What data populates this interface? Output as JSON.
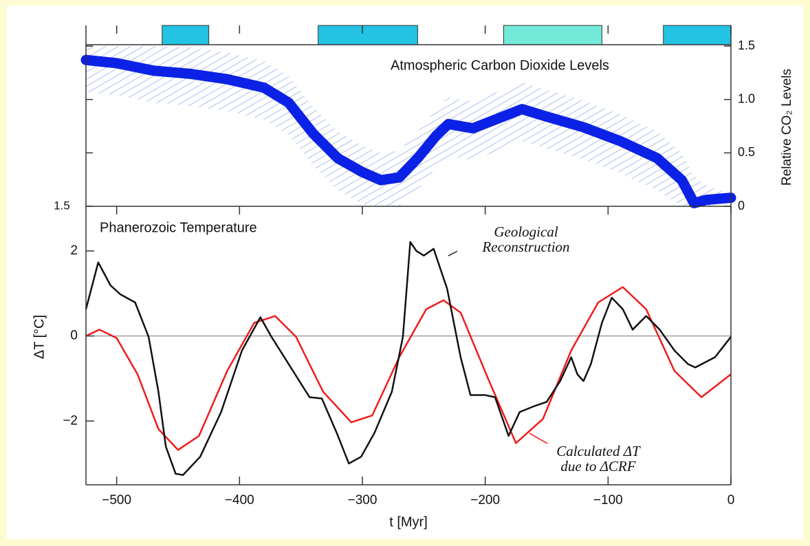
{
  "chart_data": [
    {
      "type": "line",
      "title": "Atmospheric Carbon Dioxide Levels",
      "y_label": "Relative CO₂ Levels",
      "corner_label": "1.5",
      "xlim": [
        -525,
        0
      ],
      "ylim": [
        0,
        1.5
      ],
      "yticks": [
        0,
        0.5,
        {
          "value": 1,
          "label": "1.0"
        },
        1.5
      ],
      "bands": [
        {
          "start": -463,
          "end": -425,
          "color": "#22c3e3"
        },
        {
          "start": -336,
          "end": -255,
          "color": "#22c3e3"
        },
        {
          "start": -185,
          "end": -105,
          "color": "#72ead9"
        },
        {
          "start": -55,
          "end": 0,
          "color": "#22c3e3"
        }
      ],
      "series": [
        {
          "color": "#0b22e6",
          "hatch_color": "#8aa4ea",
          "x": [
            -525,
            -500,
            -470,
            -440,
            -410,
            -380,
            -360,
            -340,
            -320,
            -300,
            -285,
            -270,
            -255,
            -240,
            -230,
            -210,
            -190,
            -170,
            -150,
            -120,
            -90,
            -60,
            -40,
            -30,
            -20,
            0
          ],
          "values": [
            1.37,
            1.34,
            1.27,
            1.24,
            1.19,
            1.11,
            0.97,
            0.68,
            0.45,
            0.32,
            0.245,
            0.27,
            0.45,
            0.66,
            0.77,
            0.73,
            0.82,
            0.91,
            0.84,
            0.74,
            0.61,
            0.45,
            0.245,
            0.03,
            0.06,
            0.08
          ],
          "upper": [
            1.5,
            1.5,
            1.5,
            1.49,
            1.44,
            1.36,
            1.22,
            0.93,
            0.7,
            0.57,
            0.5,
            0.52,
            0.7,
            0.91,
            1.02,
            0.98,
            1.07,
            1.16,
            1.09,
            0.99,
            0.86,
            0.7,
            0.5,
            0.28,
            0.2,
            0.1
          ],
          "lower": [
            1.07,
            1.04,
            0.97,
            0.94,
            0.89,
            0.81,
            0.67,
            0.38,
            0.15,
            0.02,
            0,
            0,
            0.15,
            0.36,
            0.47,
            0.43,
            0.52,
            0.61,
            0.54,
            0.44,
            0.31,
            0.15,
            0,
            0,
            0,
            0.05
          ]
        }
      ]
    },
    {
      "type": "line",
      "title": "Phanerozoic Temperature",
      "x_label": "t [Myr]",
      "y_label": "ΔT [°C]",
      "xlim": [
        -525,
        0
      ],
      "ylim": [
        -3.5,
        3.05
      ],
      "xticks": [
        {
          "value": -500,
          "label": "−500"
        },
        {
          "value": -400,
          "label": "−400"
        },
        {
          "value": -300,
          "label": "−300"
        },
        {
          "value": -200,
          "label": "−200"
        },
        {
          "value": -100,
          "label": "−100"
        },
        0
      ],
      "yticks": [
        {
          "value": -2,
          "label": "−2"
        },
        0,
        2
      ],
      "series": [
        {
          "name": "Geological Reconstruction",
          "color": "#111111",
          "x": [
            -525,
            -515,
            -505,
            -497,
            -485,
            -474,
            -466,
            -460,
            -452,
            -446,
            -432,
            -415,
            -398,
            -383,
            -374,
            -360,
            -343,
            -333,
            -321,
            -311,
            -301,
            -290,
            -276,
            -267,
            -261,
            -256,
            -250,
            -242,
            -231,
            -220,
            -212,
            -200,
            -192,
            -181,
            -172,
            -161,
            -150,
            -139,
            -130,
            -125,
            -120,
            -114,
            -105,
            -97,
            -88,
            -80,
            -69,
            -58,
            -46,
            -35,
            -29,
            -13,
            0
          ],
          "values": [
            0.63,
            1.73,
            1.19,
            0.98,
            0.79,
            -0.02,
            -1.31,
            -2.6,
            -3.24,
            -3.27,
            -2.84,
            -1.79,
            -0.34,
            0.44,
            -0.02,
            -0.66,
            -1.44,
            -1.47,
            -2.27,
            -3.0,
            -2.84,
            -2.27,
            -1.31,
            -0.02,
            2.21,
            2.0,
            1.89,
            2.05,
            1.11,
            -0.5,
            -1.39,
            -1.39,
            -1.44,
            -2.35,
            -1.79,
            -1.66,
            -1.55,
            -1.06,
            -0.5,
            -0.9,
            -1.06,
            -0.66,
            0.31,
            0.9,
            0.63,
            0.15,
            0.47,
            0.15,
            -0.34,
            -0.66,
            -0.74,
            -0.5,
            -0.02
          ]
        },
        {
          "name": "Calculated ΔT due to ΔCRF",
          "color": "#ee1c1c",
          "x": [
            -525,
            -514,
            -500,
            -483,
            -466,
            -450,
            -433,
            -410,
            -388,
            -371,
            -354,
            -332,
            -309,
            -292,
            -270,
            -248,
            -234,
            -220,
            -198,
            -175,
            -153,
            -130,
            -108,
            -88,
            -69,
            -46,
            -24,
            0
          ],
          "values": [
            0,
            0.15,
            -0.05,
            -0.9,
            -2.19,
            -2.68,
            -2.35,
            -0.82,
            0.31,
            0.47,
            -0.02,
            -1.31,
            -2.03,
            -1.87,
            -0.5,
            0.63,
            0.84,
            0.55,
            -0.98,
            -2.52,
            -1.95,
            -0.34,
            0.79,
            1.15,
            0.63,
            -0.82,
            -1.44,
            -0.9
          ]
        }
      ]
    }
  ]
}
